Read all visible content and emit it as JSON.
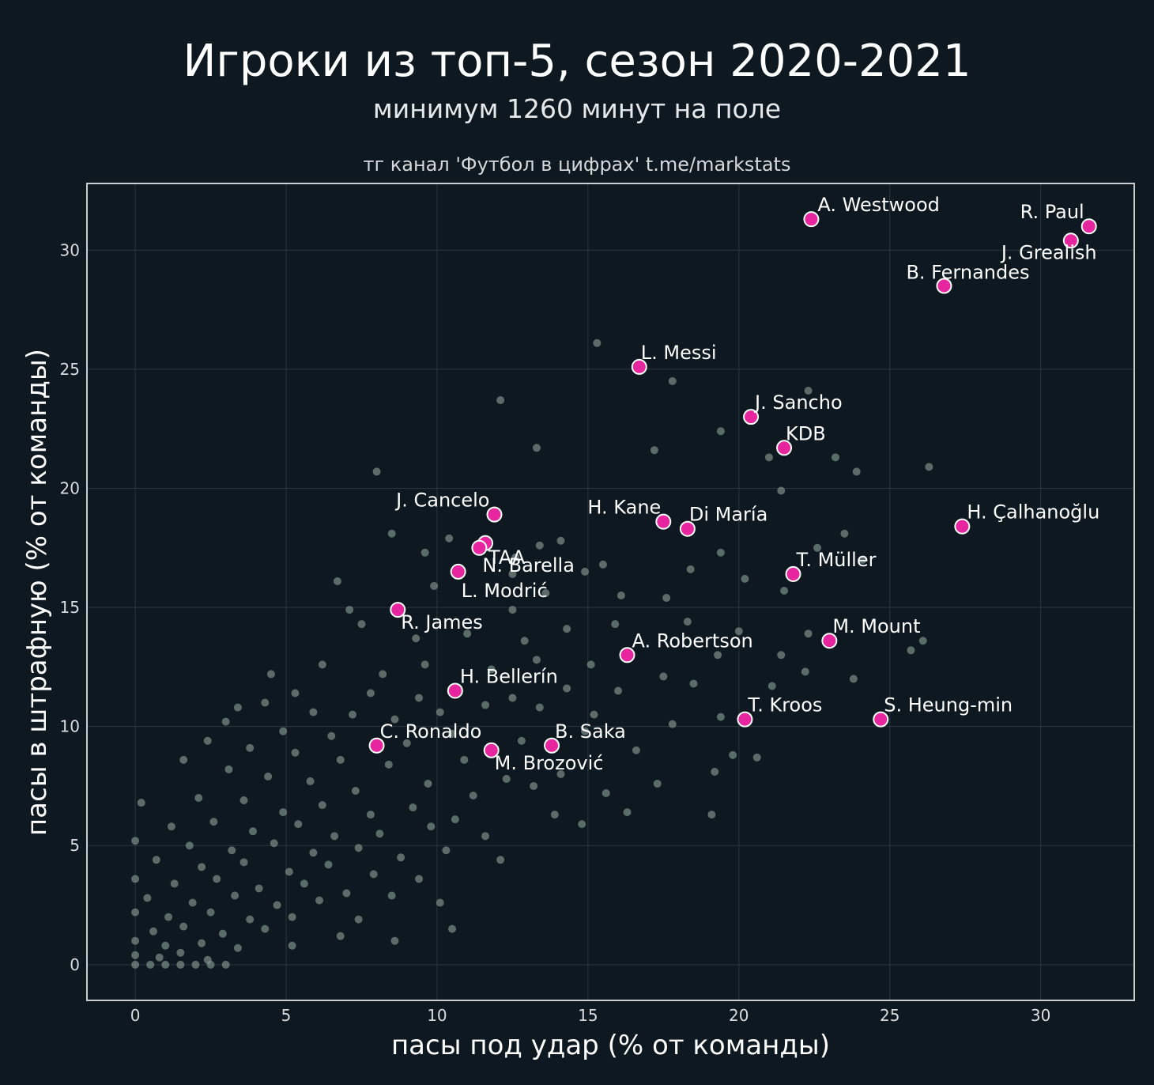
{
  "header": {
    "title": "Игроки из топ-5, сезон 2020-2021",
    "subtitle": "минимум 1260 минут на поле",
    "source": "тг канал 'Футбол в цифрах'  t.me/markstats"
  },
  "colors": {
    "background": "#0e1820",
    "highlight": "#e6259f",
    "background_points": "#8fa39a",
    "grid": "#2a3640"
  },
  "chart_data": {
    "type": "scatter",
    "title": "Игроки из топ-5, сезон 2020-2021",
    "subtitle": "минимум 1260 минут на поле",
    "xlabel": "пасы под удар (% от команды)",
    "ylabel": "пасы в штрафную (% от команды)",
    "xlim": [
      -1.6,
      33.1
    ],
    "ylim": [
      -1.5,
      32.8
    ],
    "xticks": [
      0,
      5,
      10,
      15,
      20,
      25,
      30
    ],
    "yticks": [
      0,
      5,
      10,
      15,
      20,
      25,
      30
    ],
    "grid": true,
    "highlighted": [
      {
        "name": "A. Westwood",
        "x": 22.4,
        "y": 31.3
      },
      {
        "name": "R. Paul",
        "x": 31.6,
        "y": 31.0
      },
      {
        "name": "J. Grealish",
        "x": 31.0,
        "y": 30.4
      },
      {
        "name": "B. Fernandes",
        "x": 26.8,
        "y": 28.5
      },
      {
        "name": "L. Messi",
        "x": 16.7,
        "y": 25.1
      },
      {
        "name": "J. Sancho",
        "x": 20.4,
        "y": 23.0
      },
      {
        "name": "KDB",
        "x": 21.5,
        "y": 21.7
      },
      {
        "name": "J. Cancelo",
        "x": 11.9,
        "y": 18.9
      },
      {
        "name": "TAA",
        "x": 11.6,
        "y": 17.7
      },
      {
        "name": "N. Barella",
        "x": 11.4,
        "y": 17.5
      },
      {
        "name": "L. Modrić",
        "x": 10.7,
        "y": 16.5
      },
      {
        "name": "H. Kane",
        "x": 17.5,
        "y": 18.6
      },
      {
        "name": "Di María",
        "x": 18.3,
        "y": 18.3
      },
      {
        "name": "H. Çalhanoğlu",
        "x": 27.4,
        "y": 18.4
      },
      {
        "name": "T. Müller",
        "x": 21.8,
        "y": 16.4
      },
      {
        "name": "R. James",
        "x": 8.7,
        "y": 14.9
      },
      {
        "name": "A. Robertson",
        "x": 16.3,
        "y": 13.0
      },
      {
        "name": "M. Mount",
        "x": 23.0,
        "y": 13.6
      },
      {
        "name": "H. Bellerín",
        "x": 10.6,
        "y": 11.5
      },
      {
        "name": "T. Kroos",
        "x": 20.2,
        "y": 10.3
      },
      {
        "name": "S. Heung-min",
        "x": 24.7,
        "y": 10.3
      },
      {
        "name": "C. Ronaldo",
        "x": 8.0,
        "y": 9.2
      },
      {
        "name": "M. Brozović",
        "x": 11.8,
        "y": 9.0
      },
      {
        "name": "B. Saka",
        "x": 13.8,
        "y": 9.2
      }
    ],
    "others_sample": [
      [
        15.3,
        26.1
      ],
      [
        12.1,
        23.7
      ],
      [
        17.8,
        24.5
      ],
      [
        22.3,
        24.1
      ],
      [
        19.4,
        22.4
      ],
      [
        17.2,
        21.6
      ],
      [
        13.3,
        21.7
      ],
      [
        8.0,
        20.7
      ],
      [
        23.9,
        20.7
      ],
      [
        26.3,
        20.9
      ],
      [
        21.0,
        21.3
      ],
      [
        23.2,
        21.3
      ],
      [
        21.4,
        19.9
      ],
      [
        8.5,
        18.1
      ],
      [
        10.4,
        17.9
      ],
      [
        9.6,
        17.3
      ],
      [
        12.6,
        17.1
      ],
      [
        14.1,
        17.8
      ],
      [
        13.4,
        17.6
      ],
      [
        15.5,
        16.8
      ],
      [
        12.5,
        16.4
      ],
      [
        14.9,
        16.5
      ],
      [
        18.4,
        16.6
      ],
      [
        20.2,
        16.2
      ],
      [
        19.4,
        17.3
      ],
      [
        23.5,
        18.1
      ],
      [
        24.1,
        17.0
      ],
      [
        22.6,
        17.5
      ],
      [
        9.9,
        15.9
      ],
      [
        6.7,
        16.1
      ],
      [
        12.5,
        14.9
      ],
      [
        13.6,
        15.6
      ],
      [
        16.1,
        15.5
      ],
      [
        17.6,
        15.4
      ],
      [
        21.5,
        15.7
      ],
      [
        7.1,
        14.9
      ],
      [
        7.5,
        14.3
      ],
      [
        9.3,
        13.7
      ],
      [
        11.0,
        13.9
      ],
      [
        12.9,
        13.6
      ],
      [
        14.3,
        14.1
      ],
      [
        15.9,
        14.3
      ],
      [
        18.3,
        14.4
      ],
      [
        20.0,
        14.0
      ],
      [
        22.3,
        13.9
      ],
      [
        25.7,
        13.2
      ],
      [
        26.1,
        13.6
      ],
      [
        6.2,
        12.6
      ],
      [
        8.2,
        12.2
      ],
      [
        9.6,
        12.6
      ],
      [
        11.8,
        12.4
      ],
      [
        13.3,
        12.8
      ],
      [
        15.1,
        12.6
      ],
      [
        17.5,
        12.1
      ],
      [
        19.3,
        13.0
      ],
      [
        21.4,
        13.0
      ],
      [
        22.2,
        12.3
      ],
      [
        4.5,
        12.2
      ],
      [
        5.3,
        11.4
      ],
      [
        7.8,
        11.4
      ],
      [
        9.4,
        11.2
      ],
      [
        12.5,
        11.2
      ],
      [
        14.3,
        11.6
      ],
      [
        16.0,
        11.5
      ],
      [
        18.5,
        11.8
      ],
      [
        21.1,
        11.7
      ],
      [
        23.8,
        12.0
      ],
      [
        3.4,
        10.8
      ],
      [
        4.3,
        11.0
      ],
      [
        5.9,
        10.6
      ],
      [
        7.2,
        10.5
      ],
      [
        8.6,
        10.3
      ],
      [
        10.1,
        10.6
      ],
      [
        11.6,
        10.9
      ],
      [
        13.4,
        10.8
      ],
      [
        15.2,
        10.5
      ],
      [
        17.8,
        10.1
      ],
      [
        19.4,
        10.4
      ],
      [
        3.0,
        10.2
      ],
      [
        4.9,
        9.8
      ],
      [
        6.5,
        9.6
      ],
      [
        9.0,
        9.3
      ],
      [
        10.5,
        9.7
      ],
      [
        12.8,
        9.4
      ],
      [
        14.9,
        9.8
      ],
      [
        16.6,
        9.0
      ],
      [
        19.8,
        8.8
      ],
      [
        20.6,
        8.7
      ],
      [
        2.4,
        9.4
      ],
      [
        3.8,
        9.1
      ],
      [
        5.3,
        8.9
      ],
      [
        6.8,
        8.6
      ],
      [
        8.4,
        8.4
      ],
      [
        10.9,
        8.6
      ],
      [
        12.3,
        7.8
      ],
      [
        14.1,
        8.0
      ],
      [
        17.3,
        7.6
      ],
      [
        19.2,
        8.1
      ],
      [
        1.6,
        8.6
      ],
      [
        3.1,
        8.2
      ],
      [
        4.4,
        7.9
      ],
      [
        5.8,
        7.7
      ],
      [
        7.3,
        7.3
      ],
      [
        9.7,
        7.6
      ],
      [
        11.2,
        7.1
      ],
      [
        13.2,
        7.5
      ],
      [
        15.6,
        7.2
      ],
      [
        0.2,
        6.8
      ],
      [
        2.1,
        7.0
      ],
      [
        3.6,
        6.9
      ],
      [
        4.9,
        6.4
      ],
      [
        6.2,
        6.7
      ],
      [
        7.8,
        6.3
      ],
      [
        9.2,
        6.6
      ],
      [
        10.6,
        6.1
      ],
      [
        13.9,
        6.3
      ],
      [
        16.3,
        6.4
      ],
      [
        19.1,
        6.3
      ],
      [
        1.2,
        5.8
      ],
      [
        2.6,
        6.0
      ],
      [
        3.9,
        5.6
      ],
      [
        5.4,
        5.9
      ],
      [
        6.6,
        5.4
      ],
      [
        8.1,
        5.5
      ],
      [
        9.8,
        5.8
      ],
      [
        11.6,
        5.4
      ],
      [
        14.8,
        5.9
      ],
      [
        0.0,
        5.2
      ],
      [
        1.8,
        5.0
      ],
      [
        3.2,
        4.8
      ],
      [
        4.6,
        5.1
      ],
      [
        5.9,
        4.7
      ],
      [
        7.4,
        4.9
      ],
      [
        8.8,
        4.5
      ],
      [
        10.3,
        4.8
      ],
      [
        12.1,
        4.4
      ],
      [
        0.7,
        4.4
      ],
      [
        2.2,
        4.1
      ],
      [
        3.6,
        4.3
      ],
      [
        5.1,
        3.9
      ],
      [
        6.4,
        4.2
      ],
      [
        7.9,
        3.8
      ],
      [
        9.4,
        3.6
      ],
      [
        0.0,
        3.6
      ],
      [
        1.3,
        3.4
      ],
      [
        2.7,
        3.6
      ],
      [
        4.1,
        3.2
      ],
      [
        5.6,
        3.4
      ],
      [
        7.0,
        3.0
      ],
      [
        8.5,
        2.9
      ],
      [
        0.4,
        2.8
      ],
      [
        1.9,
        2.6
      ],
      [
        3.3,
        2.9
      ],
      [
        4.7,
        2.5
      ],
      [
        6.1,
        2.7
      ],
      [
        10.1,
        2.6
      ],
      [
        0.0,
        2.2
      ],
      [
        1.1,
        2.0
      ],
      [
        2.5,
        2.2
      ],
      [
        3.8,
        1.9
      ],
      [
        5.2,
        2.0
      ],
      [
        7.4,
        1.9
      ],
      [
        0.6,
        1.4
      ],
      [
        1.6,
        1.6
      ],
      [
        2.9,
        1.3
      ],
      [
        4.3,
        1.5
      ],
      [
        10.5,
        1.5
      ],
      [
        0.0,
        1.0
      ],
      [
        1.0,
        0.8
      ],
      [
        2.2,
        0.9
      ],
      [
        3.4,
        0.7
      ],
      [
        6.8,
        1.2
      ],
      [
        8.6,
        1.0
      ],
      [
        5.2,
        0.8
      ],
      [
        0.0,
        0.4
      ],
      [
        0.8,
        0.3
      ],
      [
        1.5,
        0.5
      ],
      [
        2.4,
        0.2
      ],
      [
        0.0,
        0.0
      ],
      [
        0.5,
        0.0
      ],
      [
        1.0,
        0.0
      ],
      [
        1.5,
        0.0
      ],
      [
        2.0,
        0.0
      ],
      [
        2.5,
        0.0
      ],
      [
        3.0,
        0.0
      ]
    ]
  }
}
